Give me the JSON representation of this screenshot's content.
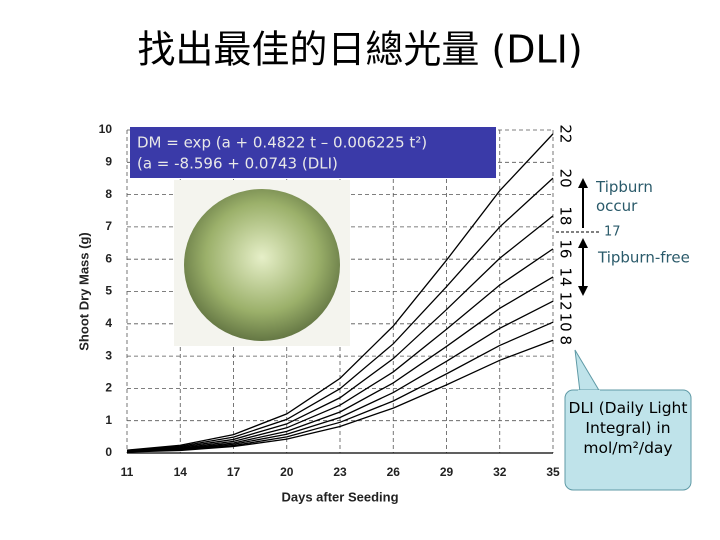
{
  "chart_data": {
    "type": "line",
    "title": "找出最佳的日總光量 (DLI)",
    "x_label": "Days after Seeding",
    "y_label": "Shoot Dry Mass (g)",
    "x": [
      11,
      14,
      17,
      20,
      23,
      26,
      29,
      32,
      35
    ],
    "xlim": [
      11,
      35
    ],
    "xticks": [
      11,
      14,
      17,
      20,
      23,
      26,
      29,
      32,
      35
    ],
    "ylim": [
      0,
      10
    ],
    "yticks": [
      0,
      1,
      2,
      3,
      4,
      5,
      6,
      7,
      8,
      9,
      10
    ],
    "grid": true,
    "series": [
      {
        "name": "22",
        "color": "#000000",
        "values": [
          0.09,
          0.24,
          0.57,
          1.21,
          2.31,
          3.93,
          5.97,
          8.12,
          9.88
        ]
      },
      {
        "name": "20",
        "color": "#000000",
        "values": [
          0.08,
          0.21,
          0.49,
          1.04,
          1.99,
          3.38,
          5.15,
          7.0,
          8.51
        ]
      },
      {
        "name": "18",
        "color": "#000000",
        "values": [
          0.07,
          0.18,
          0.42,
          0.9,
          1.71,
          2.92,
          4.44,
          6.03,
          7.34
        ]
      },
      {
        "name": "16",
        "color": "#000000",
        "values": [
          0.06,
          0.15,
          0.36,
          0.78,
          1.48,
          2.51,
          3.83,
          5.2,
          6.32
        ]
      },
      {
        "name": "14",
        "color": "#000000",
        "values": [
          0.05,
          0.13,
          0.31,
          0.67,
          1.27,
          2.17,
          3.3,
          4.48,
          5.45
        ]
      },
      {
        "name": "12",
        "color": "#000000",
        "values": [
          0.04,
          0.11,
          0.27,
          0.58,
          1.1,
          1.87,
          2.84,
          3.86,
          4.7
        ]
      },
      {
        "name": "10",
        "color": "#000000",
        "values": [
          0.04,
          0.1,
          0.23,
          0.5,
          0.95,
          1.61,
          2.45,
          3.33,
          4.05
        ]
      },
      {
        "name": "8",
        "color": "#000000",
        "values": [
          0.03,
          0.08,
          0.2,
          0.43,
          0.82,
          1.39,
          2.11,
          2.87,
          3.49
        ]
      }
    ],
    "annotations": [
      "DM = exp (a + 0.4822 t – 0.006225 t²)",
      "(a = -8.596 + 0.0743 (DLI)",
      "Tipburn occur",
      "17",
      "Tipburn-free",
      "DLI (Daily Light Integral) in mol/m²/day"
    ]
  }
}
